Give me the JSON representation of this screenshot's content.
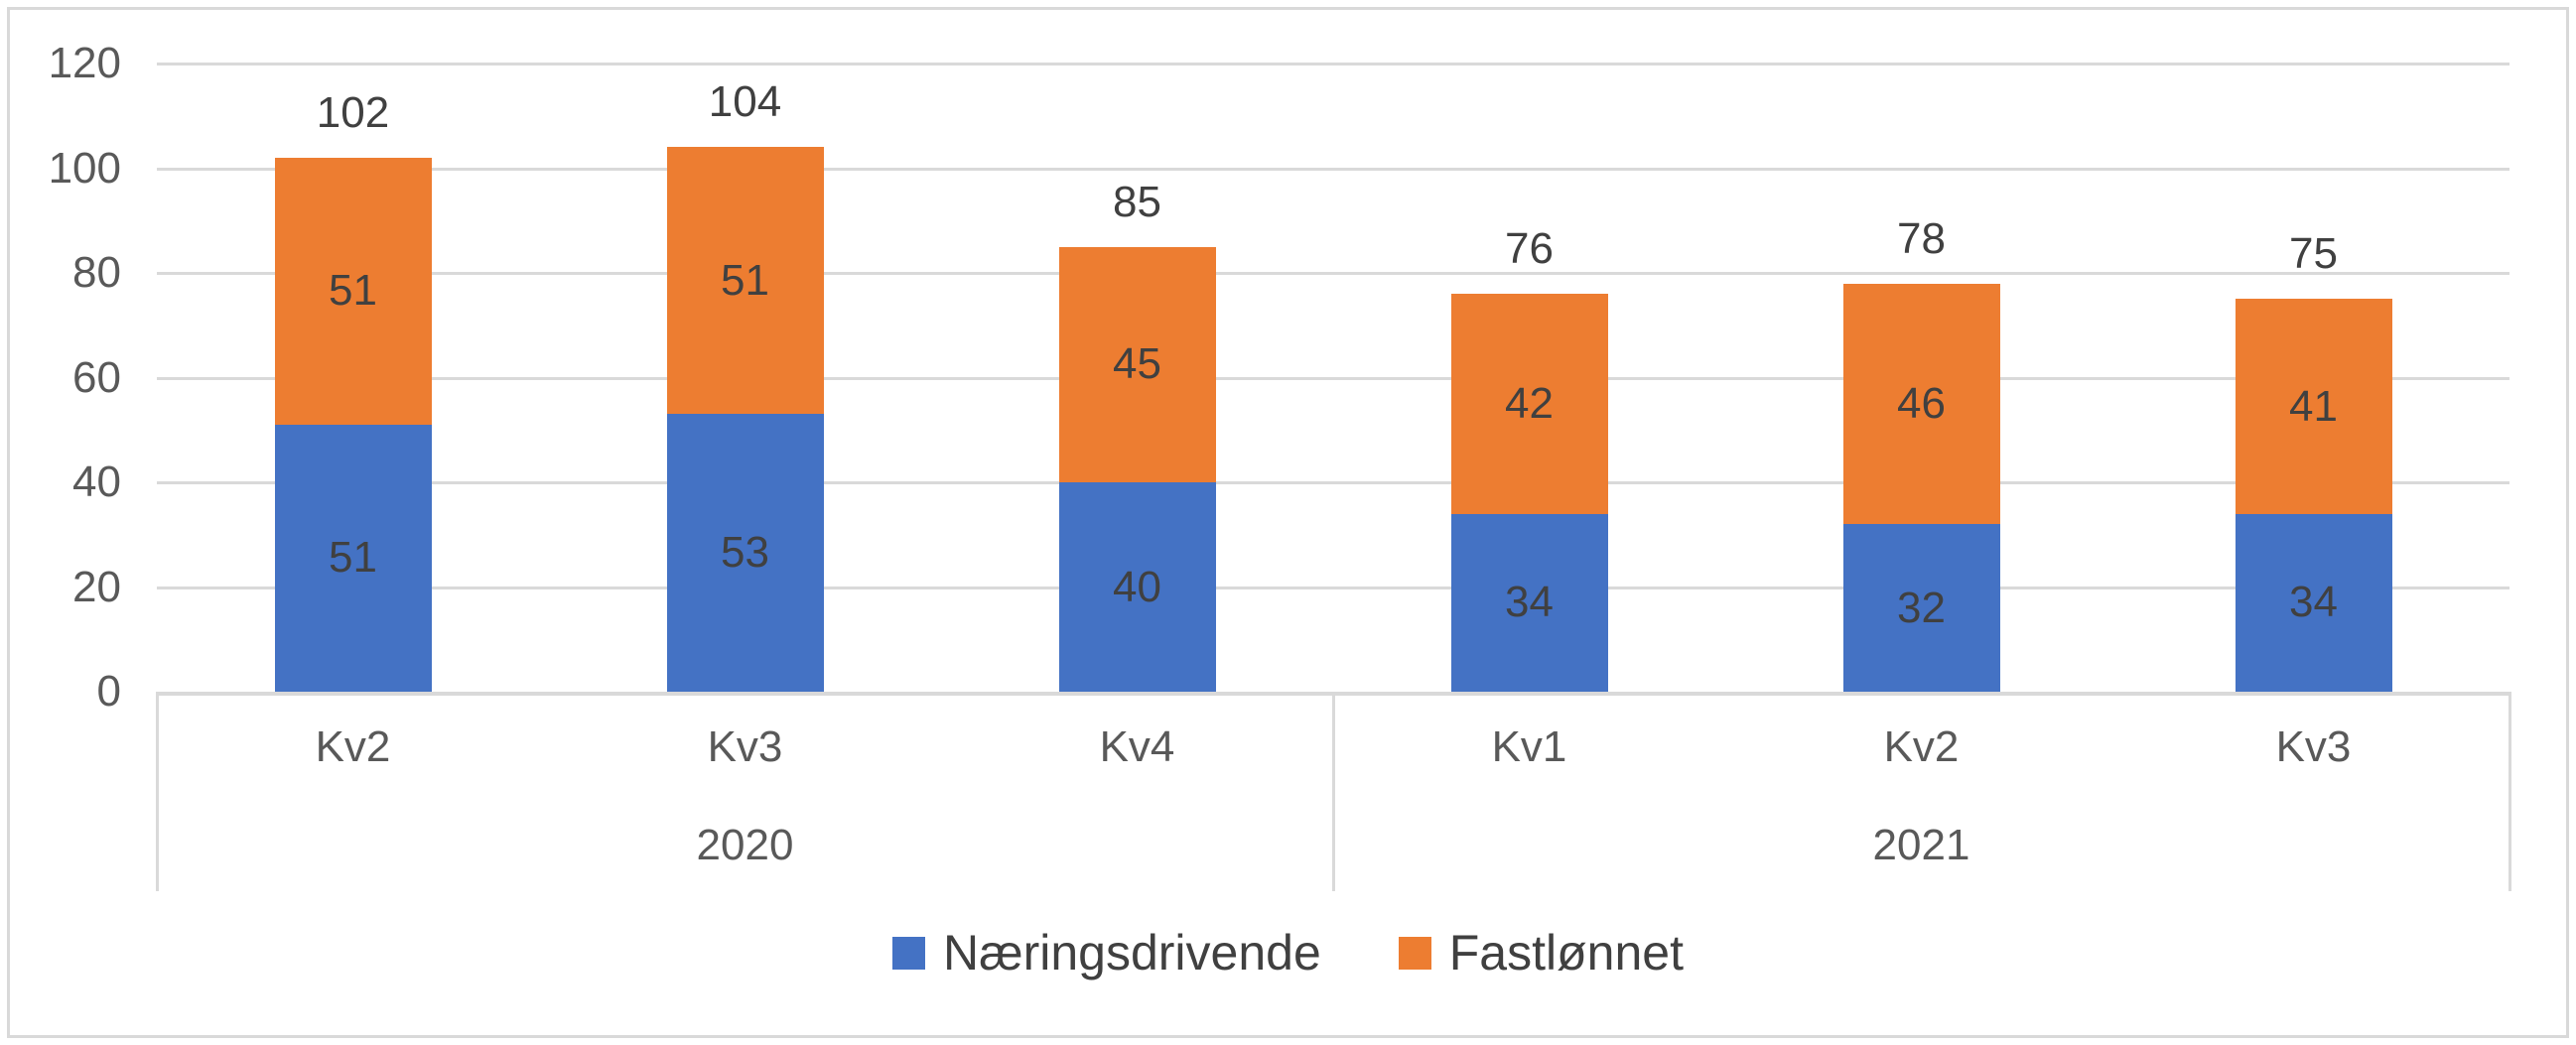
{
  "chart_data": {
    "type": "bar",
    "stacked": true,
    "title": "",
    "xlabel": "",
    "ylabel": "",
    "categories": [
      "Kv2",
      "Kv3",
      "Kv4",
      "Kv1",
      "Kv2",
      "Kv3"
    ],
    "category_groups": [
      {
        "label": "2020",
        "span": 3
      },
      {
        "label": "2021",
        "span": 3
      }
    ],
    "series": [
      {
        "name": "Næringsdrivende",
        "color": "#4472C4",
        "values": [
          51,
          53,
          40,
          34,
          32,
          34
        ]
      },
      {
        "name": "Fastlønnet",
        "color": "#ED7D31",
        "values": [
          51,
          51,
          45,
          42,
          46,
          41
        ]
      }
    ],
    "totals": [
      102,
      104,
      85,
      76,
      78,
      75
    ],
    "yticks": [
      0,
      20,
      40,
      60,
      80,
      100,
      120
    ],
    "ylim": [
      0,
      120
    ],
    "grid": true,
    "legend_position": "bottom",
    "colors": {
      "grid": "#D9D9D9",
      "axis_line": "#D9D9D9",
      "border": "#D9D9D9",
      "axis_text": "#595959",
      "data_label_text": "#404040",
      "legend_text": "#404040",
      "background": "#FFFFFF"
    }
  }
}
